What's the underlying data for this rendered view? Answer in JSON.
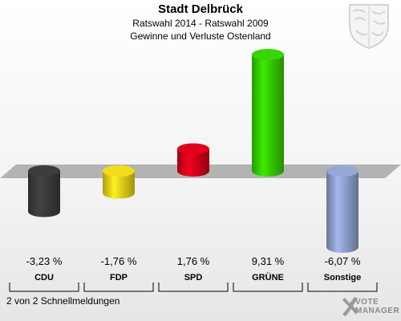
{
  "header": {
    "title": "Stadt Delbrück",
    "subtitle1": "Ratswahl 2014 - Ratswahl 2009",
    "subtitle2": "Gewinne und Verluste Ostenland"
  },
  "chart_data": {
    "type": "bar",
    "title": "Stadt Delbrück",
    "subtitle": "Ratswahl 2014 - Ratswahl 2009 / Gewinne und Verluste Ostenland",
    "categories": [
      "CDU",
      "FDP",
      "SPD",
      "GRÜNE",
      "Sonstige"
    ],
    "values": [
      -3.23,
      -1.76,
      1.76,
      9.31,
      -6.07
    ],
    "value_labels": [
      "-3,23 %",
      "-1,76 %",
      "1,76 %",
      "9,31 %",
      "-6,07 %"
    ],
    "colors": [
      "#3a3a3a",
      "#e6d21a",
      "#d4001a",
      "#33cc00",
      "#8fa0cc"
    ],
    "unit": "%",
    "ylim": [
      -6.07,
      9.31
    ],
    "grid": false,
    "legend": "none"
  },
  "footer": {
    "status": "2 von 2 Schnellmeldungen"
  },
  "logo": {
    "line1": "VOTE",
    "line2": "MANAGER",
    "icon": "vote-cross-icon"
  },
  "coat_of_arms": {
    "icon": "coat-of-arms-icon"
  }
}
